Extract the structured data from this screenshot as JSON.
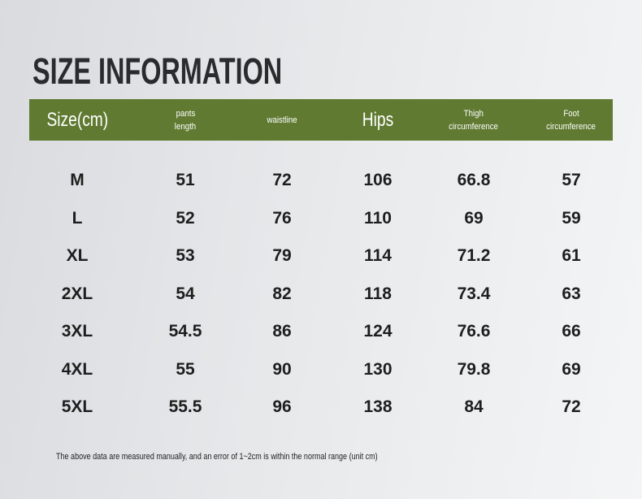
{
  "title": "SIZE INFORMATION",
  "table": {
    "headers": [
      [
        "Size(cm)"
      ],
      [
        "pants",
        "length"
      ],
      [
        "waistline"
      ],
      [
        "Hips"
      ],
      [
        "Thigh",
        "circumference"
      ],
      [
        "Foot",
        "circumference"
      ]
    ],
    "rows": [
      [
        "M",
        51,
        72,
        106,
        66.8,
        57
      ],
      [
        "L",
        52,
        76,
        110,
        69,
        59
      ],
      [
        "XL",
        53,
        79,
        114,
        71.2,
        61
      ],
      [
        "2XL",
        54,
        82,
        118,
        73.4,
        63
      ],
      [
        "3XL",
        54.5,
        86,
        124,
        76.6,
        66
      ],
      [
        "4XL",
        55,
        90,
        130,
        79.8,
        69
      ],
      [
        "5XL",
        55.5,
        96,
        138,
        84,
        72
      ]
    ]
  },
  "footnote": "The above data are measured manually, and an error of 1~2cm is within the normal range (unit cm)"
}
